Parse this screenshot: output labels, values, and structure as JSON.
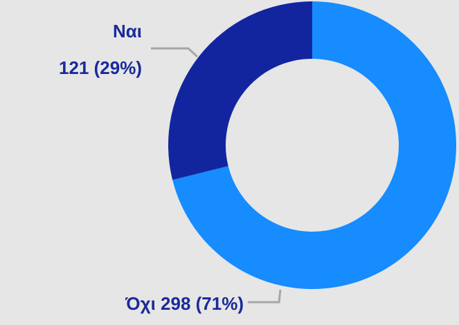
{
  "chart_data": {
    "type": "donut",
    "categories": [
      "Όχι",
      "Ναι"
    ],
    "values": [
      298,
      121
    ],
    "value_labels": [
      "298 (71%)",
      "121 (29%)"
    ],
    "colors": [
      "#168cff",
      "#13259e"
    ]
  }
}
